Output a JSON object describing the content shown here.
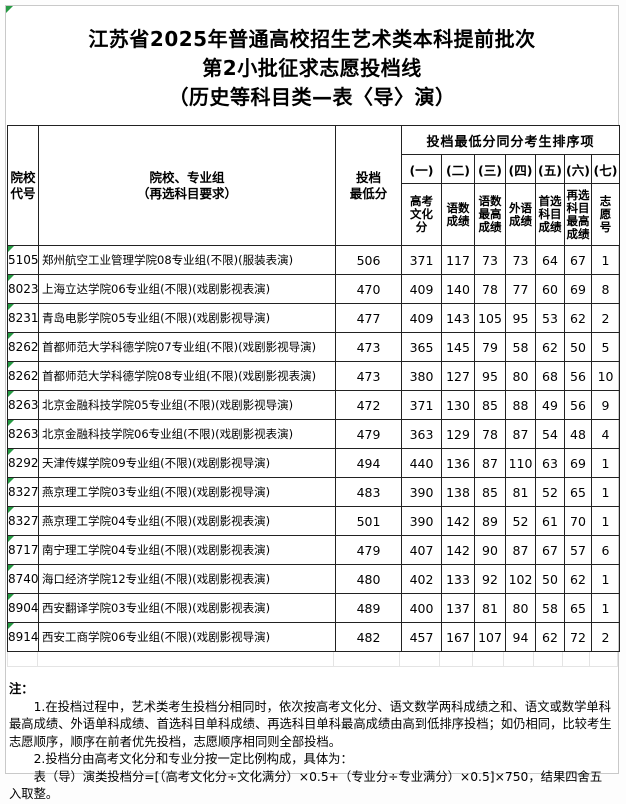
{
  "title": {
    "line1": "江苏省2025年普通高校招生艺术类本科提前批次",
    "line2": "第2小批征求志愿投档线",
    "line3": "（历史等科目类—表〈导〉演）"
  },
  "table": {
    "headers": {
      "col_code": "院校\n代号",
      "col_name": "院校、专业组\n（再选科目要求）",
      "col_score": "投档\n最低分",
      "group_header": "投档最低分同分考生排序项",
      "sub_numbers": [
        "(一)",
        "(二)",
        "(三)",
        "(四)",
        "(五)",
        "(六)",
        "(七)"
      ],
      "sub_labels": [
        "高考\n文化\n分",
        "语数\n成绩",
        "语数\n最高\n成绩",
        "外语\n成绩",
        "首选\n科目\n成绩",
        "再选\n科目\n最高\n成绩",
        "志\n愿\n号"
      ]
    },
    "rows": [
      {
        "code": "5105",
        "name": "郑州航空工业管理学院08专业组(不限)(服装表演)",
        "score": "506",
        "c1": "371",
        "c2": "117",
        "c3": "73",
        "c4": "73",
        "c5": "64",
        "c6": "67",
        "c7": "1"
      },
      {
        "code": "8023",
        "name": "上海立达学院06专业组(不限)(戏剧影视表演)",
        "score": "470",
        "c1": "409",
        "c2": "140",
        "c3": "78",
        "c4": "77",
        "c5": "60",
        "c6": "69",
        "c7": "8"
      },
      {
        "code": "8231",
        "name": "青岛电影学院05专业组(不限)(戏剧影视导演)",
        "score": "477",
        "c1": "409",
        "c2": "143",
        "c3": "105",
        "c4": "95",
        "c5": "53",
        "c6": "62",
        "c7": "2"
      },
      {
        "code": "8262",
        "name": "首都师范大学科德学院07专业组(不限)(戏剧影视导演)",
        "score": "473",
        "c1": "365",
        "c2": "145",
        "c3": "79",
        "c4": "58",
        "c5": "62",
        "c6": "50",
        "c7": "5"
      },
      {
        "code": "8262",
        "name": "首都师范大学科德学院08专业组(不限)(戏剧影视表演)",
        "score": "473",
        "c1": "380",
        "c2": "127",
        "c3": "95",
        "c4": "80",
        "c5": "68",
        "c6": "56",
        "c7": "10"
      },
      {
        "code": "8263",
        "name": "北京金融科技学院05专业组(不限)(戏剧影视导演)",
        "score": "472",
        "c1": "371",
        "c2": "130",
        "c3": "85",
        "c4": "88",
        "c5": "49",
        "c6": "56",
        "c7": "9"
      },
      {
        "code": "8263",
        "name": "北京金融科技学院06专业组(不限)(戏剧影视表演)",
        "score": "479",
        "c1": "363",
        "c2": "129",
        "c3": "78",
        "c4": "87",
        "c5": "54",
        "c6": "48",
        "c7": "4"
      },
      {
        "code": "8292",
        "name": "天津传媒学院09专业组(不限)(戏剧影视导演)",
        "score": "494",
        "c1": "440",
        "c2": "136",
        "c3": "87",
        "c4": "110",
        "c5": "63",
        "c6": "69",
        "c7": "1"
      },
      {
        "code": "8327",
        "name": "燕京理工学院03专业组(不限)(戏剧影视导演)",
        "score": "483",
        "c1": "390",
        "c2": "138",
        "c3": "85",
        "c4": "81",
        "c5": "52",
        "c6": "65",
        "c7": "1"
      },
      {
        "code": "8327",
        "name": "燕京理工学院04专业组(不限)(戏剧影视表演)",
        "score": "501",
        "c1": "390",
        "c2": "142",
        "c3": "89",
        "c4": "52",
        "c5": "61",
        "c6": "70",
        "c7": "1"
      },
      {
        "code": "8717",
        "name": "南宁理工学院04专业组(不限)(戏剧影视表演)",
        "score": "479",
        "c1": "407",
        "c2": "142",
        "c3": "90",
        "c4": "87",
        "c5": "67",
        "c6": "57",
        "c7": "6"
      },
      {
        "code": "8740",
        "name": "海口经济学院12专业组(不限)(戏剧影视表演)",
        "score": "480",
        "c1": "402",
        "c2": "133",
        "c3": "92",
        "c4": "102",
        "c5": "50",
        "c6": "62",
        "c7": "1"
      },
      {
        "code": "8904",
        "name": "西安翻译学院03专业组(不限)(戏剧影视表演)",
        "score": "489",
        "c1": "400",
        "c2": "137",
        "c3": "81",
        "c4": "80",
        "c5": "58",
        "c6": "65",
        "c7": "1"
      },
      {
        "code": "8914",
        "name": "西安工商学院06专业组(不限)(戏剧影视导演)",
        "score": "482",
        "c1": "457",
        "c2": "167",
        "c3": "107",
        "c4": "94",
        "c5": "62",
        "c6": "72",
        "c7": "2"
      }
    ]
  },
  "notes": {
    "label": "注：",
    "items": [
      "1.在投档过程中，艺术类考生投档分相同时，依次按高考文化分、语文数学两科成绩之和、语文或数学单科最高成绩、外语单科成绩、首选科目单科成绩、再选科目单科最高成绩由高到低排序投档；如仍相同，比较考生志愿顺序，顺序在前者优先投档，志愿顺序相同则全部投档。",
      "2.投档分由高考文化分和专业分按一定比例构成，具体为：",
      "表（导）演类投档分=[（高考文化分÷文化满分）×0.5+（专业分÷专业满分）×0.5]×750，结果四舍五入取整。"
    ]
  },
  "colors": {
    "excel_marker_green": "#269a43",
    "table_border": "#222222",
    "page_border": "#c9c9c9"
  },
  "icons": {
    "green_corner_marker": "excel-cell-flag-triangle"
  }
}
